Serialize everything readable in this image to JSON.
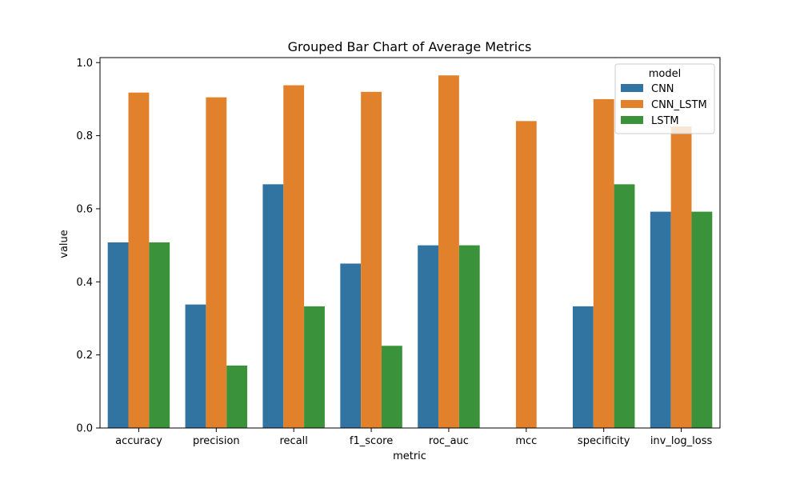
{
  "chart_data": {
    "type": "bar",
    "title": "Grouped Bar Chart of Average Metrics",
    "xlabel": "metric",
    "ylabel": "value",
    "ylim": [
      0,
      1.0
    ],
    "yticks": [
      "0.0",
      "0.2",
      "0.4",
      "0.6",
      "0.8",
      "1.0"
    ],
    "grid": false,
    "legend": {
      "title": "model",
      "placement": "top-right"
    },
    "categories": [
      "accuracy",
      "precision",
      "recall",
      "f1_score",
      "roc_auc",
      "mcc",
      "specificity",
      "inv_log_loss"
    ],
    "series": [
      {
        "name": "CNN",
        "color": "#3274a1",
        "values": [
          0.508,
          0.338,
          0.667,
          0.45,
          0.5,
          0.0,
          0.333,
          0.592
        ]
      },
      {
        "name": "CNN_LSTM",
        "color": "#e1812c",
        "values": [
          0.918,
          0.905,
          0.938,
          0.92,
          0.965,
          0.84,
          0.9,
          0.825
        ]
      },
      {
        "name": "LSTM",
        "color": "#3a923a",
        "values": [
          0.508,
          0.171,
          0.333,
          0.225,
          0.5,
          0.0,
          0.667,
          0.592
        ]
      }
    ]
  }
}
